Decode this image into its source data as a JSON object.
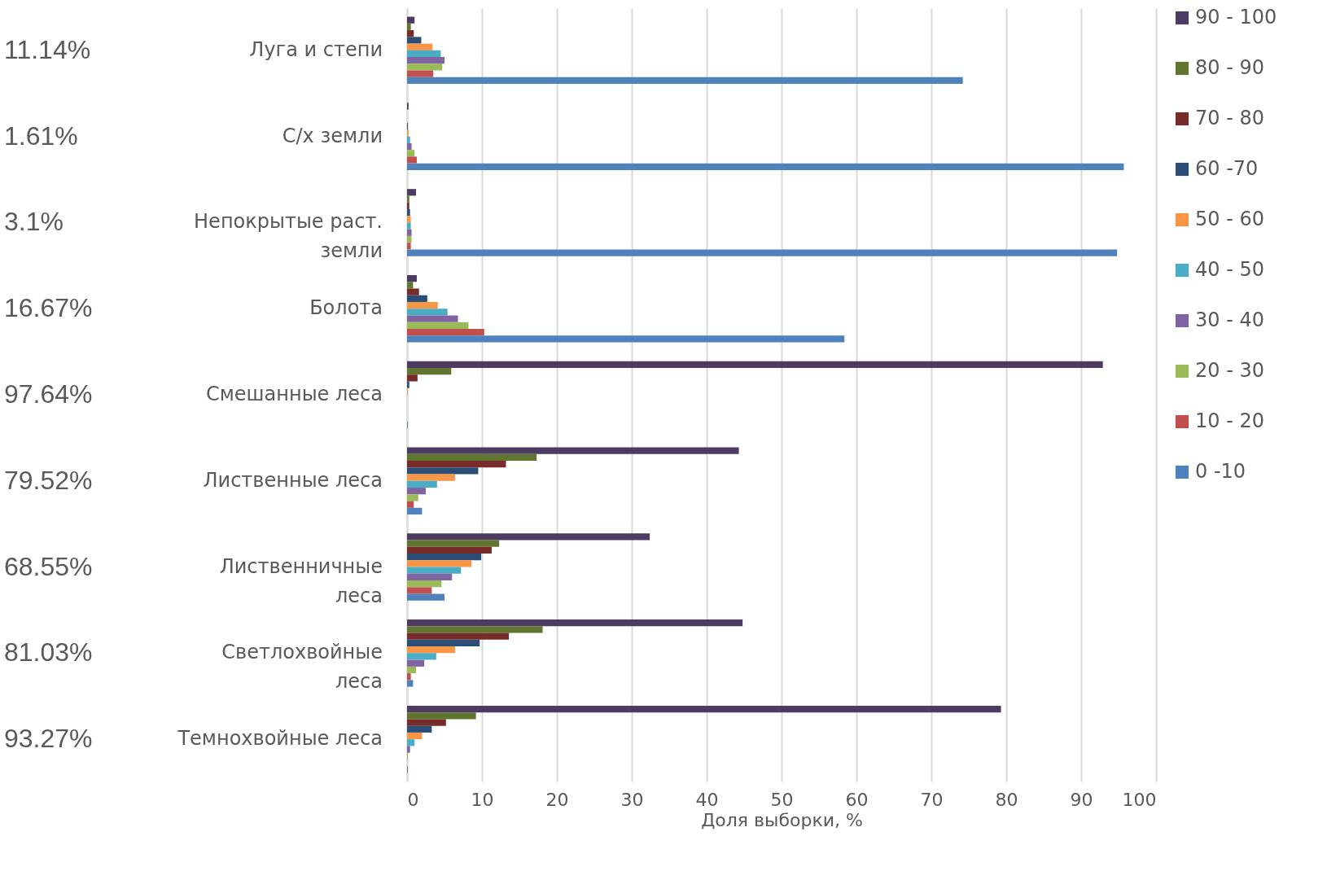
{
  "chart_data": {
    "type": "bar",
    "orientation": "horizontal",
    "xlabel": "Доля выборки, %",
    "categories": [
      "Луга и степи",
      "С/х земли",
      "Непокрытые раст. земли",
      "Болота",
      "Смешанные леса",
      "Лиственные леса",
      "Лиственничные леса",
      "Светлохвойные леса",
      "Темнохвойные леса"
    ],
    "series": [
      {
        "name": "90 - 100",
        "color": "#4e3b62",
        "values": [
          1.0,
          0.2,
          1.2,
          1.3,
          92.9,
          44.3,
          32.4,
          44.8,
          79.3
        ]
      },
      {
        "name": "80 - 90",
        "color": "#5f7530",
        "values": [
          0.5,
          0,
          0.3,
          0.8,
          5.9,
          17.3,
          12.3,
          18.1,
          9.2
        ]
      },
      {
        "name": "70 - 80",
        "color": "#772c2a",
        "values": [
          0.9,
          0,
          0.3,
          1.6,
          1.4,
          13.2,
          11.3,
          13.6,
          5.2
        ]
      },
      {
        "name": "60 -70",
        "color": "#2c4d75",
        "values": [
          1.9,
          0.1,
          0.4,
          2.7,
          0.3,
          9.5,
          9.9,
          9.7,
          3.3
        ]
      },
      {
        "name": "50 - 60",
        "color": "#f79646",
        "values": [
          3.4,
          0.2,
          0.5,
          4.1,
          0.1,
          6.4,
          8.6,
          6.4,
          2.0
        ]
      },
      {
        "name": "40 - 50",
        "color": "#4bacc6",
        "values": [
          4.5,
          0.4,
          0.5,
          5.4,
          0,
          4.0,
          7.2,
          3.9,
          1.0
        ]
      },
      {
        "name": "30 - 40",
        "color": "#8064a2",
        "values": [
          5.0,
          0.6,
          0.6,
          6.8,
          0,
          2.5,
          6.0,
          2.3,
          0.4
        ]
      },
      {
        "name": "20 - 30",
        "color": "#9bbb59",
        "values": [
          4.7,
          1.0,
          0.6,
          8.2,
          0,
          1.5,
          4.6,
          1.2,
          0.1
        ]
      },
      {
        "name": "10 - 20",
        "color": "#c0504d",
        "values": [
          3.5,
          1.3,
          0.5,
          10.3,
          0,
          0.9,
          3.3,
          0.5,
          0
        ]
      },
      {
        "name": "0 -10",
        "color": "#4f81bd",
        "values": [
          74.2,
          95.7,
          94.8,
          58.4,
          0.1,
          2.0,
          5.0,
          0.8,
          0.1
        ]
      }
    ],
    "xlim": [
      0,
      100
    ],
    "xticks": [
      0,
      10,
      20,
      30,
      40,
      50,
      60,
      70,
      80,
      90,
      100
    ],
    "grid": "x",
    "legend": "right",
    "annotations": [
      "11.14%",
      "1.61%",
      "3.1%",
      "16.67%",
      "97.64%",
      "79.52%",
      "68.55%",
      "81.03%",
      "93.27%"
    ]
  }
}
